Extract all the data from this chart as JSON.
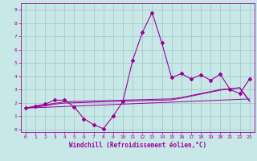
{
  "title": "",
  "xlabel": "Windchill (Refroidissement éolien,°C)",
  "ylabel": "",
  "bg_color": "#c8e8e8",
  "line_color": "#990099",
  "x_data": [
    0,
    1,
    2,
    3,
    4,
    5,
    6,
    7,
    8,
    9,
    10,
    11,
    12,
    13,
    14,
    15,
    16,
    17,
    18,
    19,
    20,
    21,
    22,
    23
  ],
  "y_main": [
    1.6,
    1.75,
    1.9,
    2.2,
    2.2,
    1.7,
    0.8,
    0.35,
    0.05,
    1.0,
    2.1,
    5.2,
    7.3,
    8.8,
    6.5,
    3.9,
    4.2,
    3.8,
    4.1,
    3.7,
    4.15,
    3.0,
    2.7,
    3.8
  ],
  "y_trend1": [
    1.6,
    1.72,
    1.84,
    1.96,
    2.08,
    2.1,
    2.12,
    2.14,
    2.16,
    2.18,
    2.2,
    2.22,
    2.24,
    2.26,
    2.28,
    2.3,
    2.4,
    2.55,
    2.7,
    2.85,
    3.0,
    3.05,
    3.1,
    2.1
  ],
  "y_trend2": [
    1.6,
    1.68,
    1.76,
    1.9,
    1.98,
    2.0,
    2.02,
    2.05,
    2.08,
    2.1,
    2.12,
    2.14,
    2.16,
    2.18,
    2.2,
    2.22,
    2.35,
    2.5,
    2.65,
    2.8,
    2.95,
    3.05,
    3.15,
    2.15
  ],
  "y_linear": [
    1.6,
    1.63,
    1.66,
    1.69,
    1.72,
    1.75,
    1.78,
    1.81,
    1.84,
    1.87,
    1.9,
    1.93,
    1.96,
    1.99,
    2.02,
    2.05,
    2.08,
    2.11,
    2.14,
    2.17,
    2.2,
    2.23,
    2.26,
    2.29
  ],
  "xlim": [
    -0.5,
    23.5
  ],
  "ylim": [
    -0.2,
    9.5
  ],
  "xticks": [
    0,
    1,
    2,
    3,
    4,
    5,
    6,
    7,
    8,
    9,
    10,
    11,
    12,
    13,
    14,
    15,
    16,
    17,
    18,
    19,
    20,
    21,
    22,
    23
  ],
  "yticks": [
    0,
    1,
    2,
    3,
    4,
    5,
    6,
    7,
    8,
    9
  ],
  "grid_color": "#a0c4c4",
  "tick_color": "#990099",
  "label_color": "#990099",
  "font_name": "monospace",
  "tick_fontsize": 4.5,
  "xlabel_fontsize": 5.5
}
